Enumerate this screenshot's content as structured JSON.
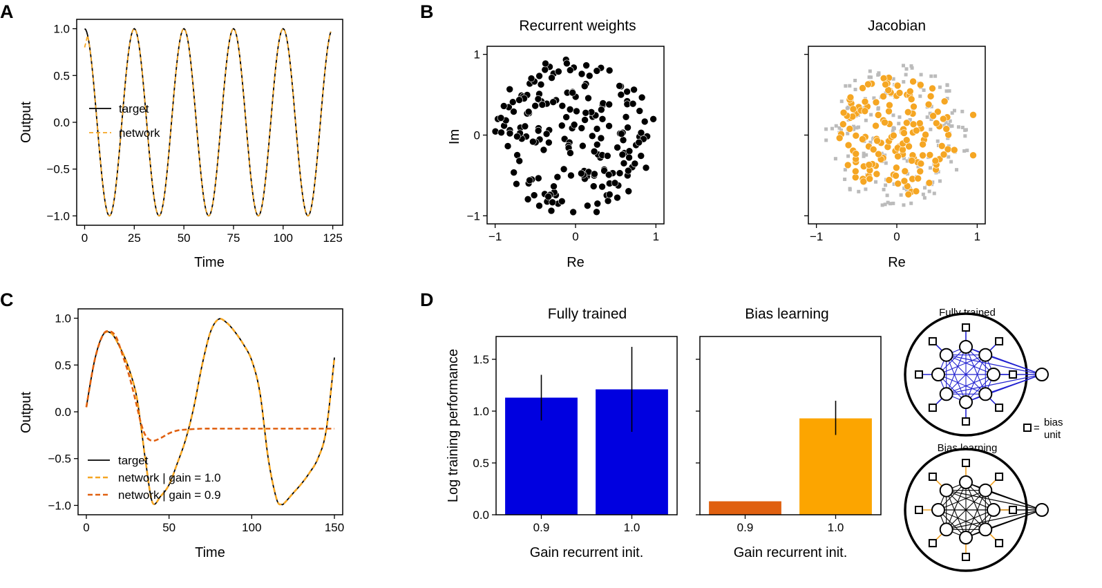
{
  "colors": {
    "target": "#000000",
    "network": "#f5a623",
    "network_gain09": "#e06010",
    "fully_trained": "#0000e0",
    "bias_learning_09": "#e06010",
    "bias_learning_10": "#fca500",
    "jacobian_gray": "#bbbbbb",
    "diagram_blue": "#2020d0",
    "diagram_orange": "#f0a020"
  },
  "panel_labels": [
    "A",
    "B",
    "C",
    "D"
  ],
  "chart_data": [
    {
      "id": "A",
      "type": "line",
      "xlabel": "Time",
      "ylabel": "Output",
      "xlim": [
        -4,
        130
      ],
      "ylim": [
        -1.1,
        1.1
      ],
      "xticks": [
        0,
        25,
        50,
        75,
        100,
        125
      ],
      "yticks": [
        -1.0,
        -0.5,
        0.0,
        0.5,
        1.0
      ],
      "xtick_labels": [
        "0",
        "25",
        "50",
        "75",
        "100",
        "125"
      ],
      "ytick_labels": [
        "−1.0",
        "−0.5",
        "0.0",
        "0.5",
        "1.0"
      ],
      "series": [
        {
          "name": "target",
          "style": "solid",
          "function": "cos(2*pi*t/25)",
          "x_range": [
            0,
            124
          ]
        },
        {
          "name": "network",
          "style": "dashed",
          "function": "cos(2*pi*t/25)",
          "x_range": [
            0,
            124
          ],
          "start_value": 0.8
        }
      ],
      "legend": {
        "placement": "center-left",
        "entries": [
          "target",
          "network"
        ]
      }
    },
    {
      "id": "B1",
      "type": "scatter",
      "title": "Recurrent weights",
      "xlabel": "Re",
      "ylabel": "Im",
      "xlim": [
        -1.1,
        1.1
      ],
      "ylim": [
        -1.1,
        1.1
      ],
      "xticks": [
        -1,
        0,
        1
      ],
      "yticks": [
        -1,
        0,
        1
      ],
      "xtick_labels": [
        "−1",
        "0",
        "1"
      ],
      "ytick_labels": [
        "−1",
        "0",
        "1"
      ],
      "n_points": 200,
      "distribution": "uniform disk radius 1"
    },
    {
      "id": "B2",
      "type": "scatter",
      "title": "Jacobian",
      "xlabel": "Re",
      "xlim": [
        -1.1,
        1.1
      ],
      "ylim": [
        -1.1,
        1.1
      ],
      "xticks": [
        -1,
        0,
        1
      ],
      "xtick_labels": [
        "−1",
        "0",
        "1"
      ],
      "series": [
        {
          "marker": "square",
          "color": "gray",
          "n_points": 180,
          "distribution": "disk radius 0.9"
        },
        {
          "marker": "circle",
          "color": "orange",
          "n_points": 150,
          "distribution": "disk radius 0.75"
        },
        {
          "marker": "circle",
          "color": "orange",
          "outliers": [
            [
              0.95,
              0.25
            ],
            [
              0.95,
              -0.25
            ]
          ]
        }
      ]
    },
    {
      "id": "C",
      "type": "line",
      "xlabel": "Time",
      "ylabel": "Output",
      "xlim": [
        -5,
        155
      ],
      "ylim": [
        -1.1,
        1.1
      ],
      "xticks": [
        0,
        50,
        100,
        150
      ],
      "yticks": [
        -1.0,
        -0.5,
        0.0,
        0.5,
        1.0
      ],
      "xtick_labels": [
        "0",
        "50",
        "100",
        "150"
      ],
      "ytick_labels": [
        "−1.0",
        "−0.5",
        "0.0",
        "0.5",
        "1.0"
      ],
      "series": [
        {
          "name": "target",
          "style": "solid",
          "x": [
            0,
            5,
            10,
            15,
            20,
            25,
            30,
            33,
            36,
            40,
            45,
            50,
            55,
            60,
            65,
            70,
            75,
            80,
            85,
            90,
            95,
            100,
            105,
            110,
            115,
            118,
            120,
            125,
            130,
            135,
            140,
            145,
            150
          ],
          "values": [
            0.05,
            0.55,
            0.82,
            0.84,
            0.7,
            0.5,
            0.2,
            -0.15,
            -0.55,
            -0.97,
            -0.9,
            -0.78,
            -0.55,
            -0.3,
            0.05,
            0.5,
            0.85,
            0.99,
            0.95,
            0.85,
            0.72,
            0.55,
            0.2,
            -0.5,
            -0.93,
            -0.99,
            -0.97,
            -0.87,
            -0.77,
            -0.65,
            -0.5,
            -0.2,
            0.58
          ]
        },
        {
          "name": "network | gain = 1.0",
          "style": "dashed",
          "x": [
            0,
            5,
            10,
            15,
            20,
            25,
            30,
            33,
            36,
            40,
            45,
            50,
            55,
            60,
            65,
            70,
            75,
            80,
            85,
            90,
            95,
            100,
            105,
            110,
            115,
            118,
            120,
            125,
            130,
            135,
            140,
            145,
            150
          ],
          "values": [
            0.05,
            0.55,
            0.82,
            0.84,
            0.7,
            0.5,
            0.2,
            -0.15,
            -0.55,
            -0.97,
            -0.9,
            -0.78,
            -0.55,
            -0.3,
            0.05,
            0.5,
            0.85,
            0.99,
            0.95,
            0.85,
            0.72,
            0.55,
            0.2,
            -0.5,
            -0.93,
            -0.99,
            -0.97,
            -0.87,
            -0.77,
            -0.65,
            -0.5,
            -0.2,
            0.58
          ]
        },
        {
          "name": "network | gain = 0.9",
          "style": "dashed",
          "x": [
            0,
            5,
            10,
            14,
            18,
            22,
            26,
            30,
            33,
            36,
            40,
            45,
            50,
            55,
            60,
            70,
            80,
            100,
            120,
            150
          ],
          "values": [
            0.05,
            0.55,
            0.82,
            0.86,
            0.8,
            0.6,
            0.38,
            0.1,
            -0.12,
            -0.26,
            -0.31,
            -0.28,
            -0.23,
            -0.2,
            -0.19,
            -0.18,
            -0.18,
            -0.18,
            -0.18,
            -0.18
          ]
        }
      ],
      "legend": {
        "placement": "lower-left",
        "entries": [
          "target",
          "network | gain = 1.0",
          "network | gain = 0.9"
        ]
      }
    },
    {
      "id": "D1",
      "type": "bar",
      "title": "Fully trained",
      "xlabel": "Gain recurrent init.",
      "ylabel": "Log training performance",
      "categories": [
        "0.9",
        "1.0"
      ],
      "values": [
        1.13,
        1.21
      ],
      "errors": [
        [
          0.91,
          1.35
        ],
        [
          0.8,
          1.62
        ]
      ],
      "ylim": [
        0,
        1.72
      ],
      "yticks": [
        0.0,
        0.5,
        1.0,
        1.5
      ],
      "ytick_labels": [
        "0.0",
        "0.5",
        "1.0",
        "1.5"
      ]
    },
    {
      "id": "D2",
      "type": "bar",
      "title": "Bias learning",
      "xlabel": "Gain recurrent init.",
      "categories": [
        "0.9",
        "1.0"
      ],
      "values": [
        0.13,
        0.93
      ],
      "errors": [
        null,
        [
          0.77,
          1.1
        ]
      ],
      "ylim": [
        0,
        1.72
      ]
    }
  ],
  "diagram": {
    "top_title": "Fully trained",
    "bottom_title": "Bias learning",
    "bias_key_equals": "=",
    "bias_key_line1": "bias",
    "bias_key_line2": "unit"
  }
}
